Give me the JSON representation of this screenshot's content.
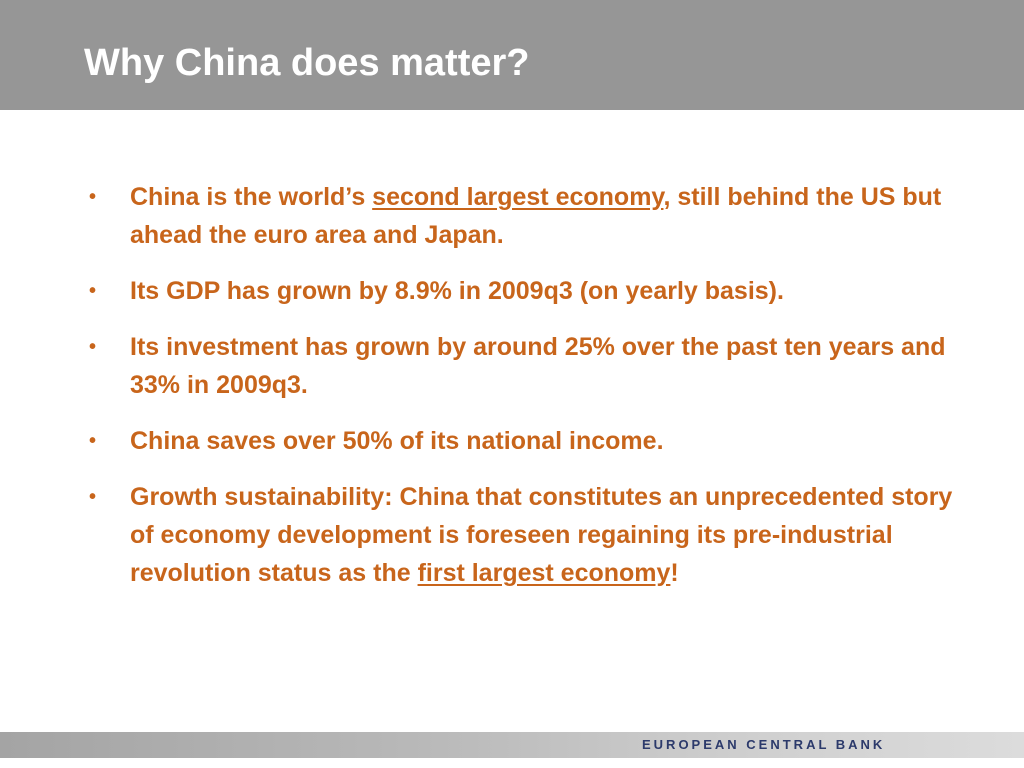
{
  "slide": {
    "title": "Why China does matter?",
    "bullets": [
      {
        "marker": "•",
        "before": "China is the world’s ",
        "link": "second largest economy",
        "after": ", still behind the US but ahead the euro area and Japan."
      },
      {
        "marker": "•",
        "text": "Its GDP has grown by 8.9% in 2009q3 (on yearly basis)."
      },
      {
        "marker": "•",
        "text": "Its investment has grown by around 25% over the past ten years and 33% in 2009q3."
      },
      {
        "marker": "•",
        "text": "China saves over 50% of its national income."
      },
      {
        "marker": "•",
        "before": "Growth sustainability: China that constitutes an unprecedented story of economy development is foreseen regaining its pre-industrial revolution status as the ",
        "link": "first largest economy",
        "after": "!"
      }
    ]
  },
  "footer": {
    "label": "EUROPEAN CENTRAL BANK"
  },
  "colors": {
    "title_bar": "#969696",
    "title_text": "#ffffff",
    "body_text": "#c8651b",
    "footer_text": "#2c3a6b"
  }
}
